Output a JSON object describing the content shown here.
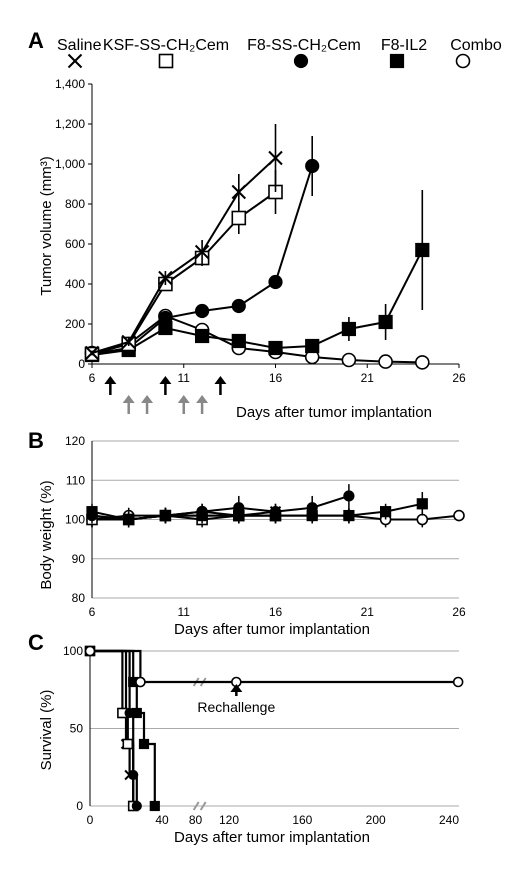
{
  "colors": {
    "axis": "#000000",
    "grid": "#aaaaaa",
    "arrow_dark": "#000000",
    "arrow_gray": "#888888"
  },
  "legend": [
    {
      "label": "Saline",
      "marker": "cross"
    },
    {
      "label": "KSF-SS-CH₂Cem",
      "marker": "open-square"
    },
    {
      "label": "F8-SS-CH₂Cem",
      "marker": "filled-circle"
    },
    {
      "label": "F8-IL2",
      "marker": "filled-square"
    },
    {
      "label": "Combo",
      "marker": "open-circle"
    }
  ],
  "chart_data": [
    {
      "panel": "A",
      "type": "line",
      "xlabel": "Days after tumor implantation",
      "ylabel": "Tumor volume (mm³)",
      "xlim": [
        6,
        26
      ],
      "ylim": [
        0,
        1400
      ],
      "xticks": [
        6,
        11,
        16,
        21,
        26
      ],
      "yticks": [
        0,
        200,
        400,
        600,
        800,
        1000,
        1200,
        1400
      ],
      "ytick_labels": [
        "0",
        "200",
        "400",
        "600",
        "800",
        "1,000",
        "1,200",
        "1,400"
      ],
      "grid": false,
      "series": [
        {
          "name": "Saline",
          "marker": "cross",
          "points": [
            [
              6,
              55,
              12
            ],
            [
              8,
              110,
              20
            ],
            [
              10,
              430,
              35
            ],
            [
              12,
              560,
              60
            ],
            [
              14,
              860,
              90
            ],
            [
              16,
              1030,
              170
            ]
          ]
        },
        {
          "name": "KSF-SS-CH₂Cem",
          "marker": "open-square",
          "points": [
            [
              6,
              50,
              10
            ],
            [
              8,
              100,
              15
            ],
            [
              10,
              400,
              25
            ],
            [
              12,
              530,
              40
            ],
            [
              14,
              730,
              80
            ],
            [
              16,
              860,
              110
            ]
          ]
        },
        {
          "name": "F8-SS-CH₂Cem",
          "marker": "filled-circle",
          "points": [
            [
              6,
              50,
              10
            ],
            [
              8,
              80,
              10
            ],
            [
              10,
              230,
              20
            ],
            [
              12,
              265,
              25
            ],
            [
              14,
              290,
              30
            ],
            [
              16,
              410,
              30
            ],
            [
              18,
              990,
              150
            ]
          ]
        },
        {
          "name": "F8-IL2",
          "marker": "filled-square",
          "points": [
            [
              6,
              45,
              10
            ],
            [
              8,
              70,
              10
            ],
            [
              10,
              180,
              20
            ],
            [
              12,
              140,
              20
            ],
            [
              14,
              115,
              20
            ],
            [
              16,
              80,
              15
            ],
            [
              18,
              90,
              20
            ],
            [
              20,
              175,
              60
            ],
            [
              22,
              210,
              90
            ],
            [
              24,
              570,
              300
            ]
          ]
        },
        {
          "name": "Combo",
          "marker": "open-circle",
          "points": [
            [
              6,
              55,
              10
            ],
            [
              8,
              100,
              15
            ],
            [
              10,
              240,
              25
            ],
            [
              12,
              170,
              20
            ],
            [
              14,
              80,
              15
            ],
            [
              16,
              60,
              10
            ],
            [
              18,
              35,
              10
            ],
            [
              20,
              20,
              5
            ],
            [
              22,
              12,
              5
            ],
            [
              24,
              8,
              3
            ]
          ]
        }
      ],
      "arrows": [
        {
          "day": 7,
          "color": "dark"
        },
        {
          "day": 8,
          "color": "gray"
        },
        {
          "day": 9,
          "color": "gray"
        },
        {
          "day": 10,
          "color": "dark"
        },
        {
          "day": 11,
          "color": "gray"
        },
        {
          "day": 12,
          "color": "gray"
        },
        {
          "day": 13,
          "color": "dark"
        }
      ]
    },
    {
      "panel": "B",
      "type": "line",
      "xlabel": "Days after tumor implantation",
      "ylabel": "Body weight (%)",
      "xlim": [
        6,
        26
      ],
      "ylim": [
        80,
        120
      ],
      "xticks": [
        6,
        11,
        16,
        21,
        26
      ],
      "yticks": [
        80,
        90,
        100,
        110,
        120
      ],
      "grid": true,
      "series": [
        {
          "name": "Saline",
          "marker": "cross",
          "points": [
            [
              6,
              101,
              2
            ],
            [
              8,
              100,
              2
            ],
            [
              10,
              101,
              2
            ],
            [
              12,
              101,
              2
            ],
            [
              14,
              101,
              2
            ],
            [
              16,
              102,
              2
            ]
          ]
        },
        {
          "name": "KSF-SS-CH₂Cem",
          "marker": "open-square",
          "points": [
            [
              6,
              100,
              2
            ],
            [
              8,
              100,
              2
            ],
            [
              10,
              101,
              2
            ],
            [
              12,
              100,
              2
            ],
            [
              14,
              101,
              2
            ],
            [
              16,
              101,
              2
            ]
          ]
        },
        {
          "name": "F8-SS-CH₂Cem",
          "marker": "filled-circle",
          "points": [
            [
              6,
              101,
              2
            ],
            [
              8,
              100,
              2
            ],
            [
              10,
              101,
              2
            ],
            [
              12,
              102,
              2
            ],
            [
              14,
              103,
              3
            ],
            [
              16,
              102,
              2
            ],
            [
              18,
              103,
              3
            ],
            [
              20,
              106,
              3
            ]
          ]
        },
        {
          "name": "F8-IL2",
          "marker": "filled-square",
          "points": [
            [
              6,
              102,
              2
            ],
            [
              8,
              100,
              2
            ],
            [
              10,
              101,
              2
            ],
            [
              12,
              101,
              2
            ],
            [
              14,
              101,
              2
            ],
            [
              16,
              101,
              2
            ],
            [
              18,
              101,
              2
            ],
            [
              20,
              101,
              2
            ],
            [
              22,
              102,
              2
            ],
            [
              24,
              104,
              3
            ]
          ]
        },
        {
          "name": "Combo",
          "marker": "open-circle",
          "points": [
            [
              6,
              100,
              2
            ],
            [
              8,
              101,
              2
            ],
            [
              10,
              101,
              2
            ],
            [
              12,
              102,
              2
            ],
            [
              14,
              101,
              2
            ],
            [
              16,
              101,
              2
            ],
            [
              18,
              101,
              2
            ],
            [
              20,
              101,
              2
            ],
            [
              22,
              100,
              2
            ],
            [
              24,
              100,
              2
            ],
            [
              26,
              101,
              1
            ]
          ]
        }
      ]
    },
    {
      "panel": "C",
      "type": "line",
      "step": true,
      "xlabel": "Days after tumor implantation",
      "ylabel": "Survival (%)",
      "xlim": [
        0,
        250
      ],
      "ylim": [
        0,
        100
      ],
      "xticks": [
        0,
        40,
        80,
        120,
        160,
        200,
        240
      ],
      "yticks": [
        0,
        50,
        100
      ],
      "grid": true,
      "axis_break_at": 85,
      "annotation": {
        "text": "Rechallenge",
        "x": 124,
        "y": 80
      },
      "series": [
        {
          "name": "Saline",
          "marker": "cross",
          "points": [
            [
              0,
              100
            ],
            [
              20,
              100
            ],
            [
              20,
              40
            ],
            [
              22,
              40
            ],
            [
              22,
              20
            ],
            [
              24,
              20
            ],
            [
              24,
              0
            ]
          ]
        },
        {
          "name": "KSF-SS-CH₂Cem",
          "marker": "open-square",
          "points": [
            [
              0,
              100
            ],
            [
              18,
              100
            ],
            [
              18,
              60
            ],
            [
              21,
              60
            ],
            [
              21,
              40
            ],
            [
              24,
              40
            ],
            [
              24,
              0
            ]
          ]
        },
        {
          "name": "F8-SS-CH₂Cem",
          "marker": "filled-circle",
          "points": [
            [
              0,
              100
            ],
            [
              22,
              100
            ],
            [
              22,
              60
            ],
            [
              24,
              60
            ],
            [
              24,
              20
            ],
            [
              26,
              20
            ],
            [
              26,
              0
            ]
          ]
        },
        {
          "name": "F8-IL2",
          "marker": "filled-square",
          "points": [
            [
              0,
              100
            ],
            [
              24,
              100
            ],
            [
              24,
              80
            ],
            [
              26,
              80
            ],
            [
              26,
              60
            ],
            [
              30,
              60
            ],
            [
              30,
              40
            ],
            [
              36,
              40
            ],
            [
              36,
              0
            ]
          ]
        },
        {
          "name": "Combo",
          "marker": "open-circle",
          "points": [
            [
              0,
              100
            ],
            [
              28,
              100
            ],
            [
              28,
              80
            ],
            [
              124,
              80
            ],
            [
              245,
              80
            ]
          ]
        }
      ]
    }
  ],
  "panel_letters": {
    "A": "A",
    "B": "B",
    "C": "C"
  },
  "labels": {
    "xlabel_a": "Days after tumor implantation",
    "xlabel_b": "Days after tumor implantation",
    "xlabel_c": "Days after tumor implantation",
    "ylabel_a": "Tumor volume (mm³)",
    "ylabel_b": "Body weight (%)",
    "ylabel_c": "Survival (%)",
    "rechallenge": "Rechallenge"
  }
}
